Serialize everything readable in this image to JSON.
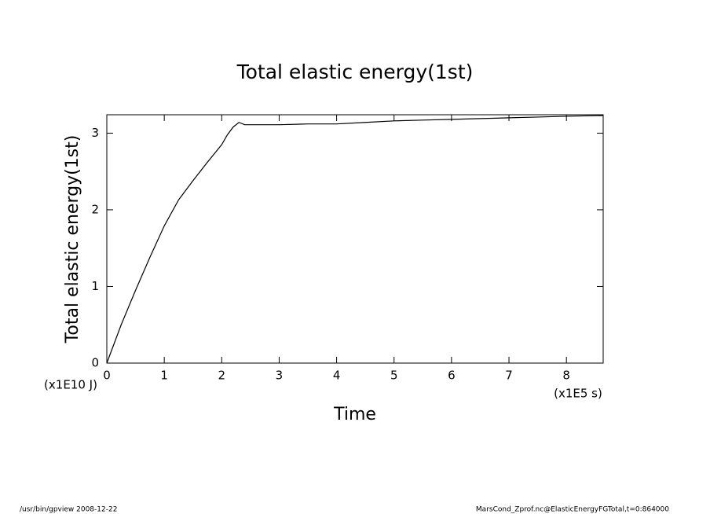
{
  "chart_data": {
    "type": "line",
    "title": "Total elastic energy(1st)",
    "ylabel": "Total elastic energy(1st)",
    "xlabel": "Time",
    "y_unit": "(x1E10 J)",
    "x_unit": "(x1E5 s)",
    "footnotes": [
      "/usr/bin/gpview   2008-12-22",
      "MarsCond_Zprof.nc@ElasticEnergyFGTotal,t=0:864000"
    ],
    "x": [
      0,
      0.25,
      0.5,
      0.75,
      1,
      1.25,
      1.5,
      1.75,
      2,
      2.1,
      2.2,
      2.3,
      2.4,
      2.6,
      3,
      3.5,
      4,
      4.5,
      5,
      5.5,
      6,
      6.5,
      7,
      7.5,
      8,
      8.64
    ],
    "series": [
      {
        "name": "Total elastic energy(1st)",
        "color": "#000000",
        "values": [
          0,
          0.5,
          0.95,
          1.38,
          1.79,
          2.13,
          2.38,
          2.62,
          2.85,
          2.98,
          3.08,
          3.14,
          3.11,
          3.11,
          3.11,
          3.12,
          3.12,
          3.14,
          3.16,
          3.17,
          3.18,
          3.19,
          3.2,
          3.21,
          3.22,
          3.23
        ]
      }
    ],
    "xlim": [
      0,
      8.64
    ],
    "ylim": [
      0,
      3.24
    ],
    "xticks": [
      0,
      1,
      2,
      3,
      4,
      5,
      6,
      7,
      8
    ],
    "yticks": [
      0,
      1,
      2,
      3
    ]
  }
}
